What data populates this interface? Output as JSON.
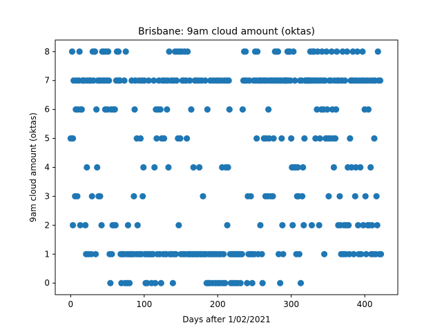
{
  "chart_data": {
    "type": "scatter",
    "title": "Brisbane: 9am cloud amount (oktas)",
    "xlabel": "Days after 1/02/2021",
    "ylabel": "9am cloud amount (oktas)",
    "xlim": [
      -21,
      445
    ],
    "ylim": [
      -0.4,
      8.4
    ],
    "xticks": [
      0,
      100,
      200,
      300,
      400
    ],
    "yticks": [
      0,
      1,
      2,
      3,
      4,
      5,
      6,
      7,
      8
    ],
    "grid": false,
    "legend": "none",
    "marker_color": "#1f77b4",
    "points": [
      [
        0,
        5
      ],
      [
        2,
        8
      ],
      [
        3,
        5
      ],
      [
        4,
        7
      ],
      [
        3,
        2
      ],
      [
        6,
        3
      ],
      [
        7,
        6
      ],
      [
        8,
        7
      ],
      [
        9,
        3
      ],
      [
        10,
        6
      ],
      [
        11,
        7
      ],
      [
        12,
        8
      ],
      [
        13,
        2
      ],
      [
        14,
        6
      ],
      [
        15,
        6
      ],
      [
        16,
        7
      ],
      [
        17,
        7
      ],
      [
        19,
        7
      ],
      [
        20,
        2
      ],
      [
        21,
        1
      ],
      [
        22,
        4
      ],
      [
        23,
        7
      ],
      [
        24,
        1
      ],
      [
        26,
        7
      ],
      [
        27,
        7
      ],
      [
        28,
        1
      ],
      [
        29,
        3
      ],
      [
        30,
        8
      ],
      [
        31,
        7
      ],
      [
        32,
        8
      ],
      [
        33,
        8
      ],
      [
        34,
        1
      ],
      [
        35,
        6
      ],
      [
        36,
        4
      ],
      [
        37,
        7
      ],
      [
        38,
        3
      ],
      [
        39,
        7
      ],
      [
        40,
        3
      ],
      [
        41,
        7
      ],
      [
        42,
        2
      ],
      [
        43,
        8
      ],
      [
        44,
        7
      ],
      [
        45,
        8
      ],
      [
        46,
        7
      ],
      [
        47,
        6
      ],
      [
        48,
        8
      ],
      [
        49,
        7
      ],
      [
        50,
        6
      ],
      [
        51,
        8
      ],
      [
        52,
        7
      ],
      [
        53,
        1
      ],
      [
        54,
        0
      ],
      [
        55,
        6
      ],
      [
        56,
        1
      ],
      [
        57,
        2
      ],
      [
        58,
        6
      ],
      [
        59,
        2
      ],
      [
        60,
        6
      ],
      [
        61,
        2
      ],
      [
        62,
        7
      ],
      [
        63,
        8
      ],
      [
        64,
        7
      ],
      [
        65,
        8
      ],
      [
        66,
        7
      ],
      [
        67,
        7
      ],
      [
        68,
        1
      ],
      [
        69,
        0
      ],
      [
        70,
        1
      ],
      [
        71,
        1
      ],
      [
        72,
        1
      ],
      [
        73,
        7
      ],
      [
        74,
        0
      ],
      [
        75,
        8
      ],
      [
        76,
        1
      ],
      [
        77,
        0
      ],
      [
        78,
        2
      ],
      [
        79,
        1
      ],
      [
        80,
        0
      ],
      [
        81,
        1
      ],
      [
        82,
        1
      ],
      [
        83,
        7
      ],
      [
        84,
        1
      ],
      [
        85,
        1
      ],
      [
        86,
        3
      ],
      [
        87,
        6
      ],
      [
        88,
        7
      ],
      [
        89,
        1
      ],
      [
        90,
        5
      ],
      [
        91,
        2
      ],
      [
        92,
        1
      ],
      [
        93,
        7
      ],
      [
        94,
        1
      ],
      [
        95,
        5
      ],
      [
        96,
        1
      ],
      [
        97,
        7
      ],
      [
        98,
        3
      ],
      [
        99,
        4
      ],
      [
        100,
        7
      ],
      [
        101,
        1
      ],
      [
        102,
        0
      ],
      [
        103,
        1
      ],
      [
        104,
        0
      ],
      [
        105,
        1
      ],
      [
        106,
        7
      ],
      [
        107,
        1
      ],
      [
        108,
        1
      ],
      [
        109,
        1
      ],
      [
        110,
        0
      ],
      [
        111,
        1
      ],
      [
        112,
        1
      ],
      [
        113,
        7
      ],
      [
        114,
        4
      ],
      [
        115,
        0
      ],
      [
        116,
        6
      ],
      [
        117,
        5
      ],
      [
        118,
        1
      ],
      [
        119,
        6
      ],
      [
        120,
        7
      ],
      [
        121,
        1
      ],
      [
        122,
        6
      ],
      [
        123,
        0
      ],
      [
        124,
        5
      ],
      [
        125,
        7
      ],
      [
        126,
        1
      ],
      [
        127,
        5
      ],
      [
        128,
        7
      ],
      [
        129,
        1
      ],
      [
        130,
        1
      ],
      [
        131,
        6
      ],
      [
        132,
        7
      ],
      [
        133,
        4
      ],
      [
        134,
        8
      ],
      [
        135,
        1
      ],
      [
        136,
        1
      ],
      [
        137,
        7
      ],
      [
        138,
        1
      ],
      [
        139,
        0
      ],
      [
        140,
        7
      ],
      [
        141,
        1
      ],
      [
        142,
        8
      ],
      [
        143,
        1
      ],
      [
        144,
        7
      ],
      [
        145,
        8
      ],
      [
        146,
        5
      ],
      [
        147,
        2
      ],
      [
        148,
        8
      ],
      [
        149,
        5
      ],
      [
        150,
        1
      ],
      [
        151,
        8
      ],
      [
        152,
        7
      ],
      [
        153,
        1
      ],
      [
        154,
        7
      ],
      [
        155,
        8
      ],
      [
        156,
        1
      ],
      [
        157,
        7
      ],
      [
        158,
        5
      ],
      [
        159,
        8
      ],
      [
        160,
        1
      ],
      [
        161,
        1
      ],
      [
        162,
        7
      ],
      [
        163,
        1
      ],
      [
        164,
        6
      ],
      [
        165,
        1
      ],
      [
        166,
        1
      ],
      [
        167,
        4
      ],
      [
        168,
        1
      ],
      [
        169,
        7
      ],
      [
        170,
        1
      ],
      [
        171,
        7
      ],
      [
        172,
        1
      ],
      [
        173,
        1
      ],
      [
        174,
        7
      ],
      [
        175,
        4
      ],
      [
        176,
        1
      ],
      [
        177,
        1
      ],
      [
        178,
        7
      ],
      [
        179,
        1
      ],
      [
        180,
        3
      ],
      [
        181,
        1
      ],
      [
        182,
        1
      ],
      [
        183,
        7
      ],
      [
        184,
        1
      ],
      [
        185,
        0
      ],
      [
        186,
        6
      ],
      [
        187,
        0
      ],
      [
        188,
        1
      ],
      [
        189,
        0
      ],
      [
        190,
        7
      ],
      [
        191,
        1
      ],
      [
        192,
        1
      ],
      [
        193,
        0
      ],
      [
        194,
        7
      ],
      [
        195,
        1
      ],
      [
        196,
        1
      ],
      [
        197,
        0
      ],
      [
        198,
        7
      ],
      [
        199,
        1
      ],
      [
        200,
        0
      ],
      [
        201,
        7
      ],
      [
        202,
        1
      ],
      [
        203,
        0
      ],
      [
        204,
        1
      ],
      [
        205,
        7
      ],
      [
        206,
        4
      ],
      [
        207,
        0
      ],
      [
        208,
        1
      ],
      [
        209,
        7
      ],
      [
        210,
        0
      ],
      [
        211,
        4
      ],
      [
        212,
        7
      ],
      [
        213,
        2
      ],
      [
        214,
        4
      ],
      [
        215,
        7
      ],
      [
        216,
        6
      ],
      [
        217,
        1
      ],
      [
        218,
        0
      ],
      [
        219,
        1
      ],
      [
        220,
        1
      ],
      [
        221,
        0
      ],
      [
        222,
        1
      ],
      [
        223,
        1
      ],
      [
        224,
        0
      ],
      [
        225,
        1
      ],
      [
        226,
        1
      ],
      [
        227,
        0
      ],
      [
        228,
        1
      ],
      [
        229,
        1
      ],
      [
        230,
        1
      ],
      [
        231,
        0
      ],
      [
        232,
        1
      ],
      [
        233,
        1
      ],
      [
        234,
        6
      ],
      [
        235,
        7
      ],
      [
        236,
        8
      ],
      [
        237,
        7
      ],
      [
        238,
        8
      ],
      [
        239,
        7
      ],
      [
        240,
        0
      ],
      [
        241,
        3
      ],
      [
        242,
        1
      ],
      [
        243,
        7
      ],
      [
        244,
        1
      ],
      [
        245,
        3
      ],
      [
        246,
        1
      ],
      [
        247,
        0
      ],
      [
        248,
        1
      ],
      [
        249,
        7
      ],
      [
        250,
        1
      ],
      [
        251,
        8
      ],
      [
        252,
        7
      ],
      [
        253,
        5
      ],
      [
        254,
        8
      ],
      [
        255,
        1
      ],
      [
        256,
        7
      ],
      [
        257,
        7
      ],
      [
        258,
        2
      ],
      [
        259,
        7
      ],
      [
        260,
        1
      ],
      [
        261,
        0
      ],
      [
        262,
        7
      ],
      [
        263,
        5
      ],
      [
        264,
        7
      ],
      [
        265,
        3
      ],
      [
        266,
        5
      ],
      [
        267,
        7
      ],
      [
        268,
        3
      ],
      [
        269,
        6
      ],
      [
        270,
        5
      ],
      [
        271,
        7
      ],
      [
        272,
        3
      ],
      [
        273,
        7
      ],
      [
        274,
        7
      ],
      [
        275,
        3
      ],
      [
        276,
        5
      ],
      [
        277,
        7
      ],
      [
        278,
        8
      ],
      [
        279,
        7
      ],
      [
        280,
        8
      ],
      [
        281,
        7
      ],
      [
        282,
        8
      ],
      [
        283,
        1
      ],
      [
        284,
        7
      ],
      [
        285,
        0
      ],
      [
        286,
        7
      ],
      [
        287,
        5
      ],
      [
        288,
        2
      ],
      [
        289,
        1
      ],
      [
        290,
        7
      ],
      [
        291,
        7
      ],
      [
        292,
        7
      ],
      [
        293,
        7
      ],
      [
        294,
        7
      ],
      [
        295,
        8
      ],
      [
        296,
        7
      ],
      [
        297,
        8
      ],
      [
        298,
        8
      ],
      [
        299,
        7
      ],
      [
        300,
        5
      ],
      [
        301,
        4
      ],
      [
        302,
        2
      ],
      [
        303,
        8
      ],
      [
        304,
        4
      ],
      [
        305,
        7
      ],
      [
        306,
        4
      ],
      [
        307,
        1
      ],
      [
        308,
        3
      ],
      [
        309,
        4
      ],
      [
        310,
        3
      ],
      [
        311,
        1
      ],
      [
        312,
        7
      ],
      [
        313,
        0
      ],
      [
        314,
        7
      ],
      [
        315,
        3
      ],
      [
        316,
        4
      ],
      [
        317,
        2
      ],
      [
        318,
        5
      ],
      [
        319,
        7
      ],
      [
        320,
        7
      ],
      [
        321,
        7
      ],
      [
        322,
        7
      ],
      [
        323,
        7
      ],
      [
        324,
        7
      ],
      [
        325,
        7
      ],
      [
        326,
        8
      ],
      [
        327,
        7
      ],
      [
        328,
        2
      ],
      [
        329,
        8
      ],
      [
        330,
        7
      ],
      [
        331,
        8
      ],
      [
        332,
        7
      ],
      [
        333,
        5
      ],
      [
        334,
        7
      ],
      [
        335,
        6
      ],
      [
        336,
        8
      ],
      [
        337,
        7
      ],
      [
        338,
        2
      ],
      [
        339,
        5
      ],
      [
        340,
        7
      ],
      [
        341,
        6
      ],
      [
        342,
        8
      ],
      [
        343,
        7
      ],
      [
        344,
        6
      ],
      [
        345,
        1
      ],
      [
        346,
        7
      ],
      [
        347,
        5
      ],
      [
        348,
        8
      ],
      [
        349,
        6
      ],
      [
        350,
        5
      ],
      [
        351,
        3
      ],
      [
        352,
        7
      ],
      [
        353,
        5
      ],
      [
        354,
        7
      ],
      [
        355,
        8
      ],
      [
        356,
        6
      ],
      [
        357,
        5
      ],
      [
        358,
        4
      ],
      [
        359,
        7
      ],
      [
        360,
        5
      ],
      [
        361,
        6
      ],
      [
        362,
        8
      ],
      [
        363,
        7
      ],
      [
        364,
        2
      ],
      [
        365,
        7
      ],
      [
        366,
        3
      ],
      [
        367,
        2
      ],
      [
        368,
        1
      ],
      [
        369,
        7
      ],
      [
        370,
        8
      ],
      [
        371,
        1
      ],
      [
        372,
        2
      ],
      [
        373,
        7
      ],
      [
        374,
        1
      ],
      [
        375,
        2
      ],
      [
        376,
        8
      ],
      [
        377,
        4
      ],
      [
        378,
        2
      ],
      [
        379,
        1
      ],
      [
        380,
        5
      ],
      [
        381,
        7
      ],
      [
        382,
        4
      ],
      [
        383,
        7
      ],
      [
        384,
        8
      ],
      [
        385,
        1
      ],
      [
        386,
        7
      ],
      [
        387,
        3
      ],
      [
        388,
        4
      ],
      [
        389,
        7
      ],
      [
        390,
        8
      ],
      [
        391,
        2
      ],
      [
        392,
        1
      ],
      [
        393,
        7
      ],
      [
        394,
        4
      ],
      [
        395,
        1
      ],
      [
        396,
        7
      ],
      [
        397,
        8
      ],
      [
        398,
        2
      ],
      [
        399,
        7
      ],
      [
        400,
        6
      ],
      [
        401,
        3
      ],
      [
        402,
        1
      ],
      [
        403,
        7
      ],
      [
        404,
        2
      ],
      [
        405,
        6
      ],
      [
        406,
        2
      ],
      [
        407,
        7
      ],
      [
        408,
        4
      ],
      [
        409,
        1
      ],
      [
        410,
        2
      ],
      [
        411,
        7
      ],
      [
        412,
        1
      ],
      [
        413,
        5
      ],
      [
        414,
        7
      ],
      [
        415,
        1
      ],
      [
        416,
        3
      ],
      [
        417,
        2
      ],
      [
        418,
        8
      ],
      [
        419,
        7
      ],
      [
        420,
        1
      ],
      [
        421,
        7
      ],
      [
        422,
        1
      ]
    ]
  }
}
